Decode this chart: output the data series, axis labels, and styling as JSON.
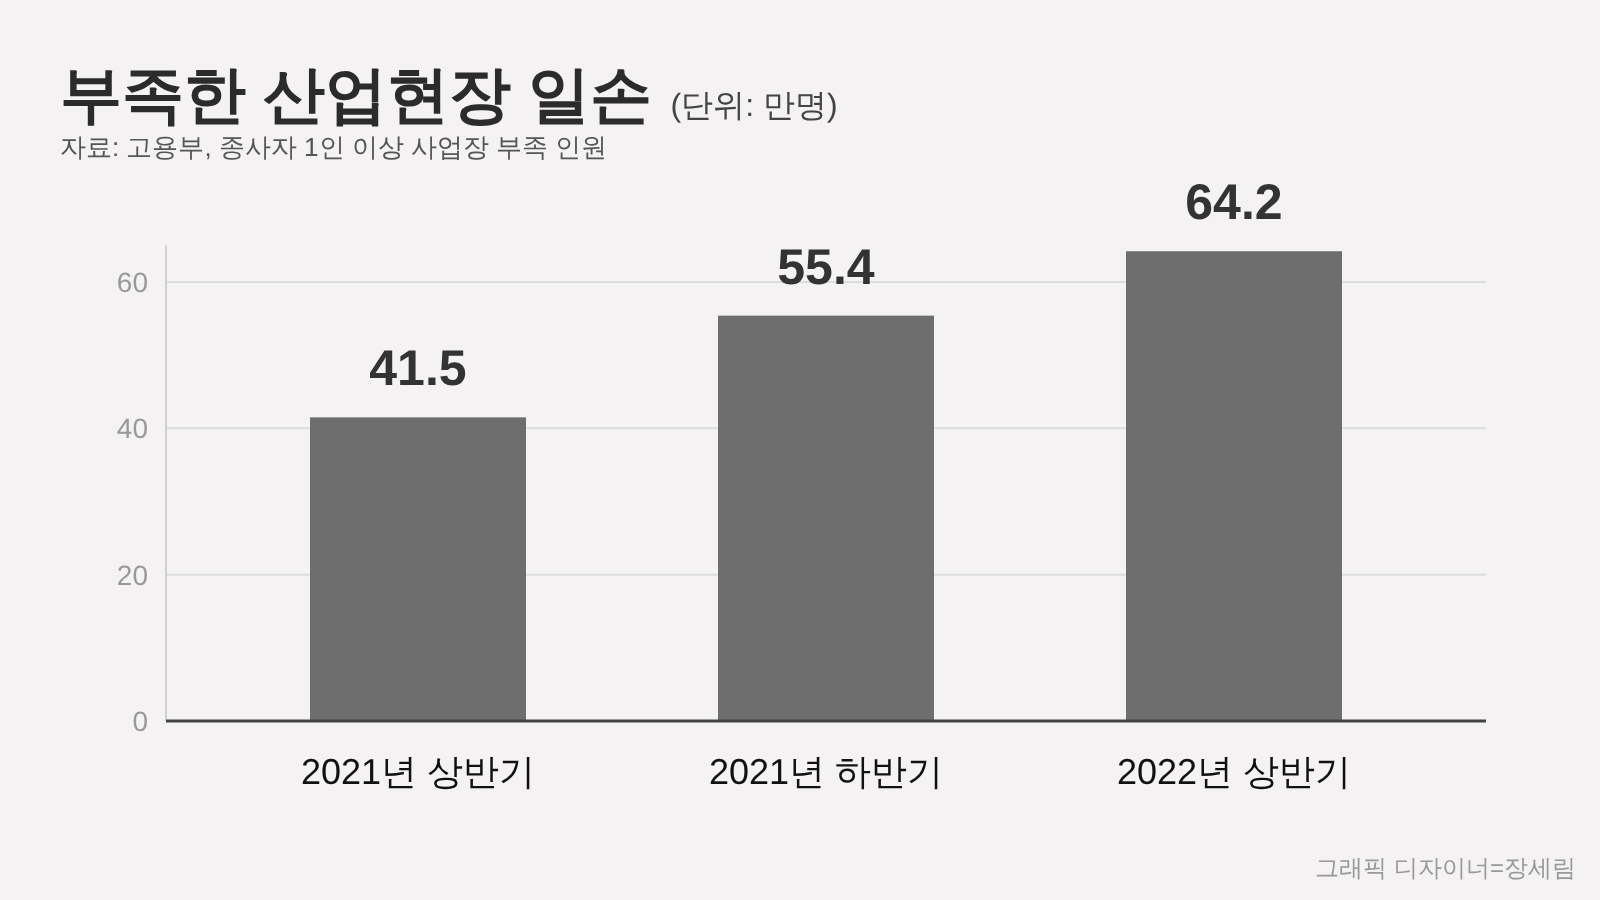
{
  "chart_data": {
    "type": "bar",
    "title": "부족한 산업현장 일손",
    "subtitle": "(단위: 만명)",
    "annotations": [
      "자료: 고용부, 종사자 1인 이상 사업장 부족 인원",
      "그래픽 디자이너=장세림"
    ],
    "categories": [
      "2021년 상반기",
      "2021년 하반기",
      "2022년 상반기"
    ],
    "values": [
      41.5,
      55.4,
      64.2
    ],
    "color": "#6e6e6e",
    "ylim": [
      0,
      65
    ],
    "yticks": [
      0,
      20,
      40,
      60
    ],
    "grid": "y",
    "data_labels": true
  }
}
